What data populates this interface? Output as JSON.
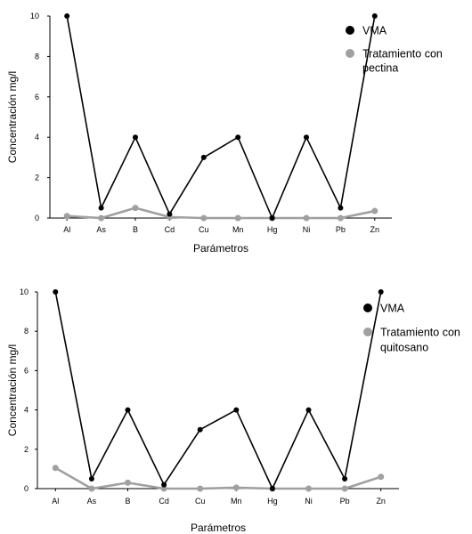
{
  "chart_data": [
    {
      "type": "line",
      "xlabel": "Parámetros",
      "ylabel": "Concentración mg/l",
      "ylim": [
        0,
        10
      ],
      "yticks": [
        "0",
        "2",
        "4",
        "6",
        "8",
        "10"
      ],
      "categories": [
        "Al",
        "As",
        "B",
        "Cd",
        "Cu",
        "Mn",
        "Hg",
        "Ni",
        "Pb",
        "Zn"
      ],
      "legend_position": "right",
      "series": [
        {
          "name": "VMA",
          "color": "#000000",
          "values": [
            10,
            0.5,
            4,
            0.2,
            3,
            4,
            0,
            4,
            0.5,
            10
          ]
        },
        {
          "name": "Tratamiento con pectina",
          "color": "#a0a0a0",
          "values": [
            0.1,
            0,
            0.5,
            0.05,
            0,
            0,
            0,
            0,
            0,
            0.35
          ]
        }
      ]
    },
    {
      "type": "line",
      "xlabel": "Parámetros",
      "ylabel": "Concentración mg/l",
      "ylim": [
        0,
        10
      ],
      "yticks": [
        "0",
        "2",
        "4",
        "6",
        "8",
        "10"
      ],
      "categories": [
        "Al",
        "As",
        "B",
        "Cd",
        "Cu",
        "Mn",
        "Hg",
        "Ni",
        "Pb",
        "Zn"
      ],
      "legend_position": "right",
      "series": [
        {
          "name": "VMA",
          "color": "#000000",
          "values": [
            10,
            0.5,
            4,
            0.2,
            3,
            4,
            0,
            4,
            0.5,
            10
          ]
        },
        {
          "name": "Tratamiento con quitosano",
          "color": "#a0a0a0",
          "values": [
            1.05,
            0,
            0.3,
            0,
            0,
            0.05,
            0,
            0,
            0,
            0.6
          ]
        }
      ]
    }
  ]
}
